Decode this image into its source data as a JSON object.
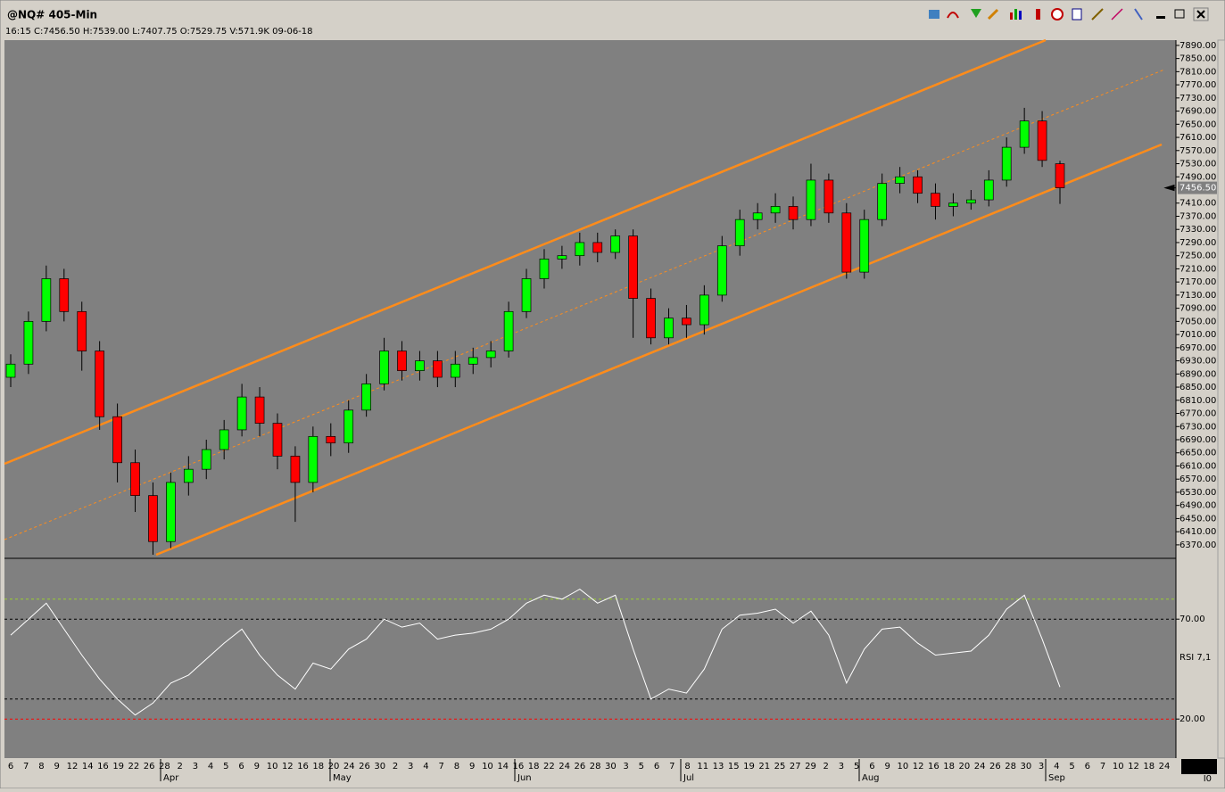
{
  "window": {
    "title": "@NQ# 405-Min",
    "info": "16:15 C:7456.50 H:7539.00 L:7407.75 O:7529.75 V:571.9K 09-06-18",
    "corner_label": "I0"
  },
  "chart_data": {
    "type": "candlestick",
    "x_labels": [
      "6",
      "7",
      "8",
      "9",
      "12",
      "14",
      "16",
      "19",
      "22",
      "26",
      "28",
      "2",
      "3",
      "4",
      "5",
      "6",
      "9",
      "10",
      "12",
      "16",
      "18",
      "20",
      "24",
      "26",
      "30",
      "2",
      "3",
      "4",
      "7",
      "8",
      "9",
      "10",
      "14",
      "16",
      "18",
      "22",
      "24",
      "26",
      "28",
      "30",
      "3",
      "5",
      "6",
      "7",
      "8",
      "11",
      "13",
      "15",
      "19",
      "21",
      "25",
      "27",
      "29",
      "2",
      "3",
      "5",
      "6",
      "9",
      "10",
      "12",
      "16",
      "18",
      "20",
      "24",
      "26",
      "28",
      "30",
      "3",
      "4",
      "5",
      "6",
      "7",
      "10",
      "12",
      "18",
      "24"
    ],
    "months": [
      "Apr",
      "May",
      "Jun",
      "Jul",
      "Aug",
      "Sep"
    ],
    "up_color": "#00ff00",
    "down_color": "#ff0000",
    "open": [
      6880,
      6920,
      7050,
      7180,
      7080,
      6960,
      6760,
      6620,
      6520,
      6380,
      6560,
      6600,
      6660,
      6720,
      6820,
      6740,
      6640,
      6560,
      6700,
      6680,
      6780,
      6860,
      6960,
      6900,
      6930,
      6880,
      6920,
      6940,
      6960,
      7080,
      7180,
      7240,
      7250,
      7290,
      7260,
      7310,
      7120,
      7000,
      7060,
      7040,
      7130,
      7280,
      7360,
      7380,
      7400,
      7360,
      7480,
      7380,
      7200,
      7360,
      7470,
      7490,
      7440,
      7400,
      7410,
      7420,
      7480,
      7580,
      7660,
      7529.75
    ],
    "high": [
      6950,
      7080,
      7220,
      7210,
      7110,
      6990,
      6800,
      6660,
      6560,
      6590,
      6640,
      6690,
      6750,
      6860,
      6850,
      6770,
      6670,
      6730,
      6740,
      6810,
      6890,
      7000,
      6990,
      6960,
      6960,
      6960,
      6970,
      6990,
      7110,
      7210,
      7270,
      7280,
      7320,
      7320,
      7330,
      7330,
      7150,
      7090,
      7100,
      7160,
      7310,
      7390,
      7410,
      7440,
      7430,
      7530,
      7500,
      7410,
      7390,
      7500,
      7520,
      7510,
      7470,
      7440,
      7450,
      7510,
      7610,
      7700,
      7690,
      7539
    ],
    "low": [
      6850,
      6890,
      7020,
      7050,
      6900,
      6720,
      6560,
      6470,
      6340,
      6360,
      6520,
      6570,
      6630,
      6700,
      6700,
      6600,
      6440,
      6530,
      6640,
      6650,
      6760,
      6840,
      6870,
      6870,
      6850,
      6850,
      6890,
      6910,
      6940,
      7060,
      7150,
      7210,
      7220,
      7230,
      7240,
      7000,
      6980,
      6980,
      7000,
      7010,
      7110,
      7250,
      7330,
      7350,
      7330,
      7340,
      7350,
      7180,
      7180,
      7340,
      7440,
      7410,
      7360,
      7370,
      7390,
      7400,
      7460,
      7560,
      7520,
      7407.75
    ],
    "close": [
      6920,
      7050,
      7180,
      7080,
      6960,
      6760,
      6620,
      6520,
      6380,
      6560,
      6600,
      6660,
      6720,
      6820,
      6740,
      6640,
      6560,
      6700,
      6680,
      6780,
      6860,
      6960,
      6900,
      6930,
      6880,
      6920,
      6940,
      6960,
      7080,
      7180,
      7240,
      7250,
      7290,
      7260,
      7310,
      7120,
      7000,
      7060,
      7040,
      7130,
      7280,
      7360,
      7380,
      7400,
      7360,
      7480,
      7380,
      7200,
      7360,
      7470,
      7490,
      7440,
      7400,
      7410,
      7420,
      7480,
      7580,
      7660,
      7540,
      7456.5
    ],
    "ylim": [
      6329,
      7906
    ],
    "yticks": [
      {
        "value": 6370,
        "label": "6370.00"
      },
      {
        "value": 6410,
        "label": "6410.00"
      },
      {
        "value": 6450,
        "label": "6450.00"
      },
      {
        "value": 6490,
        "label": "6490.00"
      },
      {
        "value": 6530,
        "label": "6530.00"
      },
      {
        "value": 6570,
        "label": "6570.00"
      },
      {
        "value": 6610,
        "label": "6610.00"
      },
      {
        "value": 6650,
        "label": "6650.00"
      },
      {
        "value": 6690,
        "label": "6690.00"
      },
      {
        "value": 6730,
        "label": "6730.00"
      },
      {
        "value": 6770,
        "label": "6770.00"
      },
      {
        "value": 6810,
        "label": "6810.00"
      },
      {
        "value": 6850,
        "label": "6850.00"
      },
      {
        "value": 6890,
        "label": "6890.00"
      },
      {
        "value": 6930,
        "label": "6930.00"
      },
      {
        "value": 6970,
        "label": "6970.00"
      },
      {
        "value": 7010,
        "label": "7010.00"
      },
      {
        "value": 7050,
        "label": "7050.00"
      },
      {
        "value": 7090,
        "label": "7090.00"
      },
      {
        "value": 7130,
        "label": "7130.00"
      },
      {
        "value": 7170,
        "label": "7170.00"
      },
      {
        "value": 7210,
        "label": "7210.00"
      },
      {
        "value": 7250,
        "label": "7250.00"
      },
      {
        "value": 7290,
        "label": "7290.00"
      },
      {
        "value": 7330,
        "label": "7330.00"
      },
      {
        "value": 7370,
        "label": "7370.00"
      },
      {
        "value": 7410,
        "label": "7410.00"
      },
      {
        "value": 7490,
        "label": "7490.00"
      },
      {
        "value": 7530,
        "label": "7530.00"
      },
      {
        "value": 7570,
        "label": "7570.00"
      },
      {
        "value": 7610,
        "label": "7610.00"
      },
      {
        "value": 7650,
        "label": "7650.00"
      },
      {
        "value": 7690,
        "label": "7690.00"
      },
      {
        "value": 7730,
        "label": "7730.00"
      },
      {
        "value": 7770,
        "label": "7770.00"
      },
      {
        "value": 7810,
        "label": "7810.00"
      },
      {
        "value": 7850,
        "label": "7850.00"
      },
      {
        "value": 7890,
        "label": "7890.00"
      }
    ],
    "last_price_label": "7456.50",
    "rsi": {
      "label": "RSI 7,1",
      "color": "#ffffff",
      "values": [
        62,
        70,
        78,
        65,
        52,
        40,
        30,
        22,
        28,
        38,
        42,
        50,
        58,
        65,
        52,
        42,
        35,
        48,
        45,
        55,
        60,
        70,
        66,
        68,
        60,
        62,
        63,
        65,
        70,
        78,
        82,
        80,
        85,
        78,
        82,
        55,
        30,
        35,
        33,
        45,
        65,
        72,
        73,
        75,
        68,
        74,
        62,
        38,
        55,
        65,
        66,
        58,
        52,
        53,
        54,
        62,
        75,
        82,
        60,
        36
      ],
      "ylim": [
        0,
        100
      ],
      "yticks": [
        {
          "value": 70,
          "label": "70.00"
        },
        {
          "value": 20,
          "label": "20.00"
        }
      ],
      "levels": [
        {
          "value": 80,
          "color": "#9acd32"
        },
        {
          "value": 70,
          "color": "#000000"
        },
        {
          "value": 30,
          "color": "#000000"
        },
        {
          "value": 20,
          "color": "#ff0000"
        }
      ]
    }
  }
}
